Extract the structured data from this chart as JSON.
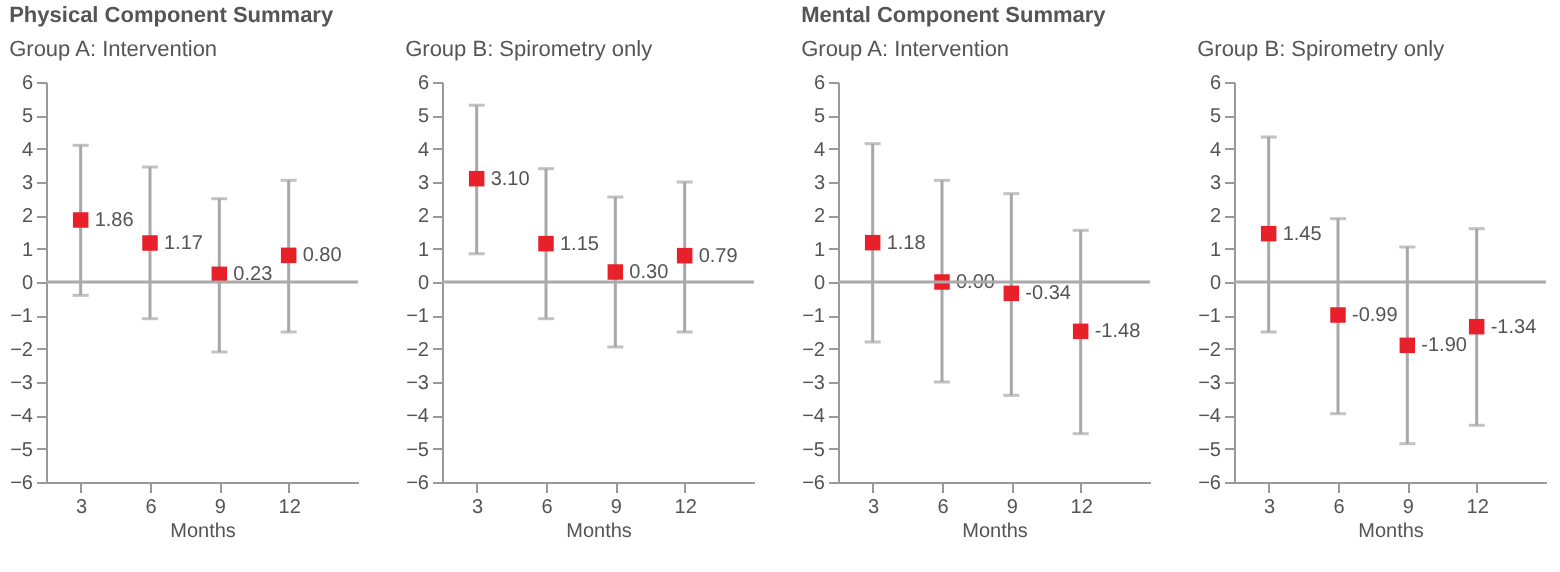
{
  "chart_data": [
    {
      "type": "scatter",
      "title": "Physical Component Summary",
      "subtitle": "Group A: Intervention",
      "xlabel": "Months",
      "x": [
        3,
        6,
        9,
        12
      ],
      "xlim": [
        1.5,
        15
      ],
      "xticks": [
        3,
        6,
        9,
        12
      ],
      "ylim": [
        -6,
        6
      ],
      "yticks": [
        -6,
        -5,
        -4,
        -3,
        -2,
        -1,
        0,
        1,
        2,
        3,
        4,
        5,
        6
      ],
      "marker": "square",
      "grid": false,
      "series": [
        {
          "color": "#e8202a",
          "values": [
            1.86,
            1.17,
            0.23,
            0.8
          ],
          "value_labels": [
            "1.86",
            "1.17",
            "0.23",
            "0.80"
          ],
          "errors": [
            [
              -0.4,
              4.1
            ],
            [
              -1.1,
              3.45
            ],
            [
              -2.1,
              2.5
            ],
            [
              -1.5,
              3.05
            ]
          ]
        }
      ],
      "ref_lines": [
        {
          "axis": "y",
          "value": 0,
          "color": "#aaaaaa"
        }
      ]
    },
    {
      "type": "scatter",
      "subtitle": "Group B: Spirometry only",
      "xlabel": "Months",
      "x": [
        3,
        6,
        9,
        12
      ],
      "xlim": [
        1.5,
        15
      ],
      "xticks": [
        3,
        6,
        9,
        12
      ],
      "ylim": [
        -6,
        6
      ],
      "yticks": [
        -6,
        -5,
        -4,
        -3,
        -2,
        -1,
        0,
        1,
        2,
        3,
        4,
        5,
        6
      ],
      "marker": "square",
      "grid": false,
      "series": [
        {
          "color": "#e8202a",
          "values": [
            3.1,
            1.15,
            0.3,
            0.79
          ],
          "value_labels": [
            "3.10",
            "1.15",
            "0.30",
            "0.79"
          ],
          "errors": [
            [
              0.85,
              5.3
            ],
            [
              -1.1,
              3.4
            ],
            [
              -1.95,
              2.55
            ],
            [
              -1.5,
              3.0
            ]
          ]
        }
      ],
      "ref_lines": [
        {
          "axis": "y",
          "value": 0,
          "color": "#aaaaaa"
        }
      ]
    },
    {
      "type": "scatter",
      "title": "Mental Component Summary",
      "subtitle": "Group A: Intervention",
      "xlabel": "Months",
      "x": [
        3,
        6,
        9,
        12
      ],
      "xlim": [
        1.5,
        15
      ],
      "xticks": [
        3,
        6,
        9,
        12
      ],
      "ylim": [
        -6,
        6
      ],
      "yticks": [
        -6,
        -5,
        -4,
        -3,
        -2,
        -1,
        0,
        1,
        2,
        3,
        4,
        5,
        6
      ],
      "marker": "square",
      "grid": false,
      "series": [
        {
          "color": "#e8202a",
          "values": [
            1.18,
            0.0,
            -0.34,
            -1.48
          ],
          "value_labels": [
            "1.18",
            "0.00",
            "-0.34",
            "-1.48"
          ],
          "errors": [
            [
              -1.8,
              4.15
            ],
            [
              -3.0,
              3.05
            ],
            [
              -3.4,
              2.65
            ],
            [
              -4.55,
              1.55
            ]
          ]
        }
      ],
      "ref_lines": [
        {
          "axis": "y",
          "value": 0,
          "color": "#aaaaaa"
        }
      ]
    },
    {
      "type": "scatter",
      "subtitle": "Group B: Spirometry only",
      "xlabel": "Months",
      "x": [
        3,
        6,
        9,
        12
      ],
      "xlim": [
        1.5,
        15
      ],
      "xticks": [
        3,
        6,
        9,
        12
      ],
      "ylim": [
        -6,
        6
      ],
      "yticks": [
        -6,
        -5,
        -4,
        -3,
        -2,
        -1,
        0,
        1,
        2,
        3,
        4,
        5,
        6
      ],
      "marker": "square",
      "grid": false,
      "series": [
        {
          "color": "#e8202a",
          "values": [
            1.45,
            -0.99,
            -1.9,
            -1.34
          ],
          "value_labels": [
            "1.45",
            "-0.99",
            "-1.90",
            "-1.34"
          ],
          "errors": [
            [
              -1.5,
              4.35
            ],
            [
              -3.95,
              1.9
            ],
            [
              -4.85,
              1.05
            ],
            [
              -4.3,
              1.6
            ]
          ]
        }
      ],
      "ref_lines": [
        {
          "axis": "y",
          "value": 0,
          "color": "#aaaaaa"
        }
      ]
    }
  ]
}
